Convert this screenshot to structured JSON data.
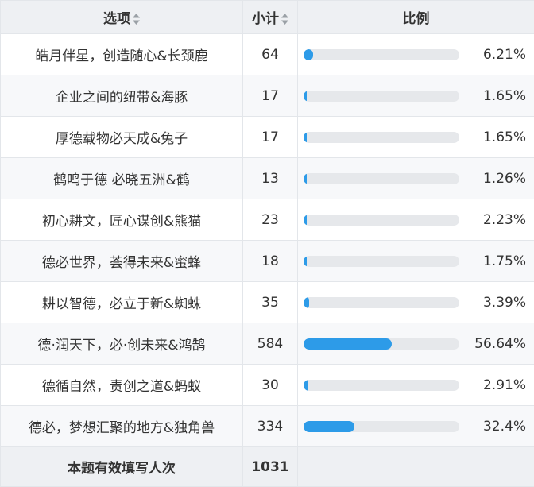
{
  "header": {
    "option_label": "选项",
    "count_label": "小计",
    "ratio_label": "比例"
  },
  "rows": [
    {
      "option": "皓月伴星，创造随心&长颈鹿",
      "count": "64",
      "percent": 6.21,
      "percent_label": "6.21%"
    },
    {
      "option": "企业之间的纽带&海豚",
      "count": "17",
      "percent": 1.65,
      "percent_label": "1.65%"
    },
    {
      "option": "厚德载物必天成&兔子",
      "count": "17",
      "percent": 1.65,
      "percent_label": "1.65%"
    },
    {
      "option": "鹤鸣于德 必晓五洲&鹤",
      "count": "13",
      "percent": 1.26,
      "percent_label": "1.26%"
    },
    {
      "option": "初心耕文，匠心谋创&熊猫",
      "count": "23",
      "percent": 2.23,
      "percent_label": "2.23%"
    },
    {
      "option": "德必世界，荟得未来&蜜蜂",
      "count": "18",
      "percent": 1.75,
      "percent_label": "1.75%"
    },
    {
      "option": "耕以智德，必立于新&蜘蛛",
      "count": "35",
      "percent": 3.39,
      "percent_label": "3.39%"
    },
    {
      "option": "德·润天下，必·创未来&鸿鹄",
      "count": "584",
      "percent": 56.64,
      "percent_label": "56.64%"
    },
    {
      "option": "德循自然，责创之道&蚂蚁",
      "count": "30",
      "percent": 2.91,
      "percent_label": "2.91%"
    },
    {
      "option": "德必，梦想汇聚的地方&独角兽",
      "count": "334",
      "percent": 32.4,
      "percent_label": "32.4%"
    }
  ],
  "footer": {
    "label": "本题有效填写人次",
    "total": "1031"
  },
  "colors": {
    "bar_fill": "#2d9be8",
    "bar_track": "#e6e8eb",
    "header_bg": "#eef0f3"
  },
  "icons": {
    "sort": "sort-icon"
  }
}
